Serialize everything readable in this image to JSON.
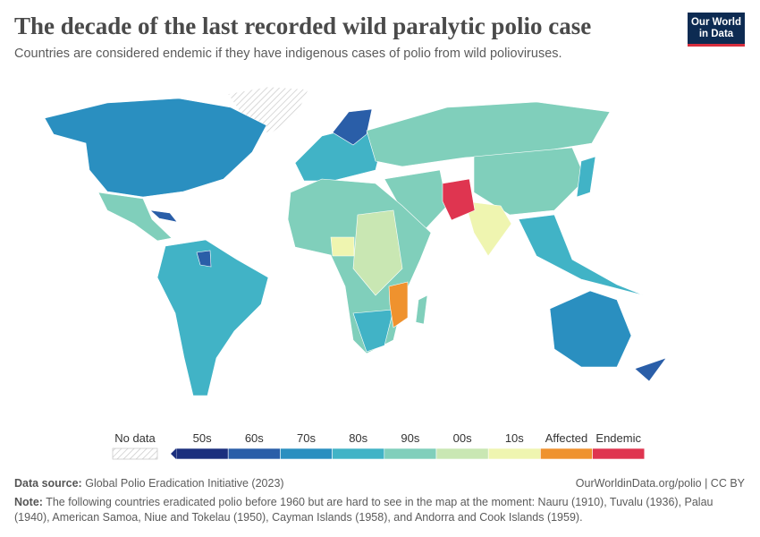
{
  "header": {
    "title": "The decade of the last recorded wild paralytic polio case",
    "subtitle": "Countries are considered endemic if they have indigenous cases of polio from wild polioviruses.",
    "logo": [
      "Our World",
      "in Data"
    ]
  },
  "legend": {
    "no_data": "No data",
    "items": [
      {
        "label": "50s",
        "color": "#1b2f7e"
      },
      {
        "label": "60s",
        "color": "#2a5ea8"
      },
      {
        "label": "70s",
        "color": "#2a8fc0"
      },
      {
        "label": "80s",
        "color": "#41b3c6"
      },
      {
        "label": "90s",
        "color": "#80cfbb"
      },
      {
        "label": "00s",
        "color": "#c9e7b3"
      },
      {
        "label": "10s",
        "color": "#eff5b0"
      },
      {
        "label": "Affected",
        "color": "#ef922e"
      },
      {
        "label": "Endemic",
        "color": "#df3550"
      }
    ]
  },
  "footer": {
    "source_label": "Data source:",
    "source": "Global Polio Eradication Initiative (2023)",
    "url": "OurWorldinData.org/polio | CC BY",
    "note_label": "Note:",
    "note": "The following countries eradicated polio before 1960 but are hard to see in the map at the moment: Nauru (1910), Tuvalu (1936), Palau (1940), American Samoa, Niue and Tokelau (1950), Cayman Islands (1958), and Andorra and Cook Islands (1959)."
  }
}
